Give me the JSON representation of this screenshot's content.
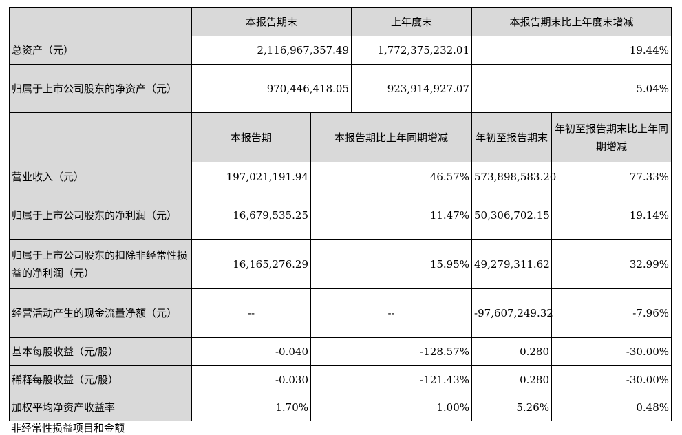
{
  "header1": {
    "current_period_end": "本报告期末",
    "prior_year_end": "上年度末",
    "change_vs_prior_year_end": "本报告期末比上年度末增减"
  },
  "balance_rows": [
    {
      "label": "总资产（元）",
      "current": "2,116,967,357.49",
      "prior": "1,772,375,232.01",
      "change": "19.44%"
    },
    {
      "label": "归属于上市公司股东的净资产（元）",
      "current": "970,446,418.05",
      "prior": "923,914,927.07",
      "change": "5.04%"
    }
  ],
  "header2": {
    "current_period": "本报告期",
    "current_period_yoy": "本报告期比上年同期增减",
    "ytd": "年初至报告期末",
    "ytd_yoy": "年初至报告期末比上年同期增减"
  },
  "income_rows": [
    {
      "label": "营业收入（元）",
      "current": "197,021,191.94",
      "yoy": "46.57%",
      "ytd": "573,898,583.20",
      "ytd_yoy": "77.33%"
    },
    {
      "label": "归属于上市公司股东的净利润（元）",
      "current": "16,679,535.25",
      "yoy": "11.47%",
      "ytd": "50,306,702.15",
      "ytd_yoy": "19.14%"
    },
    {
      "label": "归属于上市公司股东的扣除非经常性损益的净利润（元）",
      "current": "16,165,276.29",
      "yoy": "15.95%",
      "ytd": "49,279,311.62",
      "ytd_yoy": "32.99%"
    },
    {
      "label": "经营活动产生的现金流量净额（元）",
      "current": "--",
      "yoy": "--",
      "ytd": "-97,607,249.32",
      "ytd_yoy": "-7.96%"
    },
    {
      "label": "基本每股收益（元/股）",
      "current": "-0.040",
      "yoy": "-128.57%",
      "ytd": "0.280",
      "ytd_yoy": "-30.00%"
    },
    {
      "label": "稀释每股收益（元/股）",
      "current": "-0.030",
      "yoy": "-121.43%",
      "ytd": "0.280",
      "ytd_yoy": "-30.00%"
    },
    {
      "label": "加权平均净资产收益率",
      "current": "1.70%",
      "yoy": "1.00%",
      "ytd": "5.26%",
      "ytd_yoy": "0.48%"
    }
  ],
  "footer_text": "非经常性损益项目和金额"
}
